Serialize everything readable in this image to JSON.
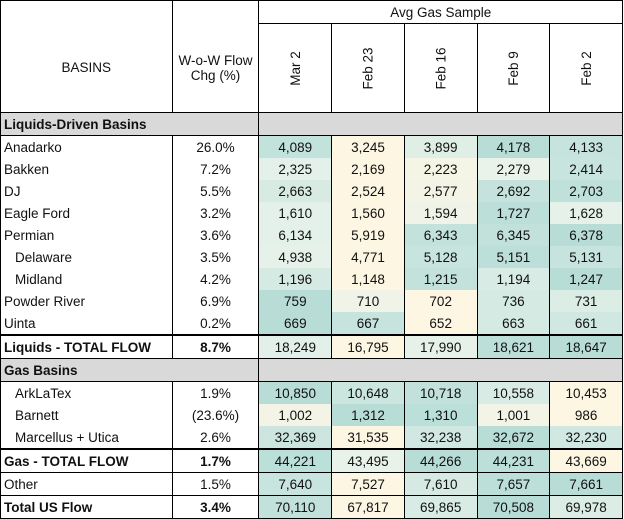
{
  "header": {
    "group_title": "Avg Gas Sample",
    "basins_label": "BASINS",
    "chg_label_line1": "W-o-W Flow",
    "chg_label_line2": "Chg (%)",
    "dates": [
      "Mar 2",
      "Feb 23",
      "Feb 16",
      "Feb 9",
      "Feb 2"
    ]
  },
  "liquids": {
    "title": "Liquids-Driven Basins",
    "rows": [
      {
        "name": "Anadarko",
        "chg": "26.0%",
        "v": [
          "4,089",
          "3,245",
          "3,899",
          "4,178",
          "4,133"
        ]
      },
      {
        "name": "Bakken",
        "chg": "7.2%",
        "v": [
          "2,325",
          "2,169",
          "2,223",
          "2,279",
          "2,414"
        ]
      },
      {
        "name": "DJ",
        "chg": "5.5%",
        "v": [
          "2,663",
          "2,524",
          "2,577",
          "2,692",
          "2,703"
        ]
      },
      {
        "name": "Eagle Ford",
        "chg": "3.2%",
        "v": [
          "1,610",
          "1,560",
          "1,594",
          "1,727",
          "1,628"
        ]
      },
      {
        "name": "Permian",
        "chg": "3.6%",
        "v": [
          "6,134",
          "5,919",
          "6,343",
          "6,345",
          "6,378"
        ]
      },
      {
        "name": "Delaware",
        "chg": "3.5%",
        "v": [
          "4,938",
          "4,771",
          "5,128",
          "5,151",
          "5,131"
        ]
      },
      {
        "name": "Midland",
        "chg": "4.2%",
        "v": [
          "1,196",
          "1,148",
          "1,215",
          "1,194",
          "1,247"
        ]
      },
      {
        "name": "Powder River",
        "chg": "6.9%",
        "v": [
          "759",
          "710",
          "702",
          "736",
          "731"
        ]
      },
      {
        "name": "Uinta",
        "chg": "0.2%",
        "v": [
          "669",
          "667",
          "652",
          "663",
          "661"
        ]
      }
    ],
    "total": {
      "name": "Liquids - TOTAL FLOW",
      "chg": "8.7%",
      "v": [
        "18,249",
        "16,795",
        "17,990",
        "18,621",
        "18,647"
      ]
    }
  },
  "gas": {
    "title": "Gas Basins",
    "rows": [
      {
        "name": "ArkLaTex",
        "chg": "1.9%",
        "v": [
          "10,850",
          "10,648",
          "10,718",
          "10,558",
          "10,453"
        ]
      },
      {
        "name": "Barnett",
        "chg": "(23.6%)",
        "v": [
          "1,002",
          "1,312",
          "1,310",
          "1,001",
          "986"
        ]
      },
      {
        "name": "Marcellus + Utica",
        "chg": "2.6%",
        "v": [
          "32,369",
          "31,535",
          "32,238",
          "32,672",
          "32,230"
        ]
      }
    ],
    "total": {
      "name": "Gas - TOTAL FLOW",
      "chg": "1.7%",
      "v": [
        "44,221",
        "43,495",
        "44,266",
        "44,231",
        "43,669"
      ]
    }
  },
  "other": {
    "name": "Other",
    "chg": "1.5%",
    "v": [
      "7,640",
      "7,527",
      "7,610",
      "7,657",
      "7,661"
    ]
  },
  "us_total": {
    "name": "Total US Flow",
    "chg": "3.4%",
    "v": [
      "70,110",
      "67,817",
      "69,865",
      "70,508",
      "69,978"
    ]
  },
  "cell_colors": {
    "liquids": [
      [
        "#c2e2dc",
        "#fdf6e3",
        "#e0efe6",
        "#b8ddd7",
        "#c6e3dd"
      ],
      [
        "#e3f1ea",
        "#fdf6e3",
        "#f5f5e6",
        "#eaf3e9",
        "#c8e4de"
      ],
      [
        "#d7ebe3",
        "#fdf6e3",
        "#f3f4e6",
        "#c5e2dc",
        "#c0e0da"
      ],
      [
        "#e4f1ea",
        "#fdf6e3",
        "#f0f3e7",
        "#bcdfd9",
        "#e6f1e9"
      ],
      [
        "#e3f1ea",
        "#fdf6e3",
        "#c4e2dc",
        "#c2e1db",
        "#b8ddd7"
      ],
      [
        "#e6f1e9",
        "#fdf6e3",
        "#c8e4de",
        "#bcdfd9",
        "#c6e3dd"
      ],
      [
        "#d4eae3",
        "#fdf6e3",
        "#c4e2dc",
        "#d8ebe4",
        "#b8ddd7"
      ],
      [
        "#b8ddd7",
        "#f0f3e7",
        "#fdf6e3",
        "#d4eae3",
        "#dcede5"
      ],
      [
        "#b8ddd7",
        "#c6e3dd",
        "#fdf6e3",
        "#d4eae3",
        "#d0e8e1"
      ]
    ],
    "liquids_total": [
      "#e2f0e9",
      "#fdf6e3",
      "#e6f1e9",
      "#bcdfd9",
      "#b8ddd7"
    ],
    "gas": [
      [
        "#b8ddd7",
        "#cbe5df",
        "#c2e1db",
        "#d8ebe4",
        "#fdf6e3"
      ],
      [
        "#f3f4e6",
        "#b8ddd7",
        "#bbdfd9",
        "#f3f4e6",
        "#fdf6e3"
      ],
      [
        "#ccE6df",
        "#fdf6e3",
        "#d0e8e1",
        "#b8ddd7",
        "#d0e8e1"
      ]
    ],
    "gas_total": [
      "#bbdfd9",
      "#e8f2e9",
      "#b8ddd7",
      "#bcdfd9",
      "#fdf6e3"
    ],
    "other": [
      "#c8e4de",
      "#fdf6e3",
      "#d6eae3",
      "#bcdfd9",
      "#b8ddd7"
    ],
    "us_total": [
      "#c2e1db",
      "#fdf6e3",
      "#d8ebe4",
      "#b8ddd7",
      "#dcede5"
    ],
    "section_bg": "#d9d9d9"
  }
}
